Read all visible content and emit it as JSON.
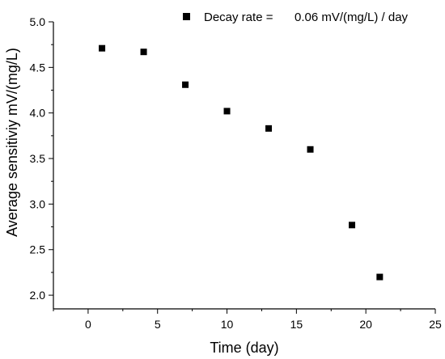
{
  "chart_data": {
    "type": "scatter",
    "title": "",
    "xlabel": "Time (day)",
    "ylabel": "Average sensitiviy mV/(mg/L)",
    "xlim": [
      -2.5,
      25
    ],
    "ylim": [
      1.85,
      5.0
    ],
    "xticks": [
      "0",
      "5",
      "10",
      "15",
      "20",
      "25"
    ],
    "yticks": [
      "2.0",
      "2.5",
      "3.0",
      "3.5",
      "4.0",
      "4.5",
      "5.0"
    ],
    "grid": false,
    "legend_position": "top-right",
    "series": [
      {
        "marker": "square",
        "color": "#000000",
        "x": [
          1,
          4,
          7,
          10,
          13,
          16,
          19,
          21
        ],
        "y": [
          4.71,
          4.67,
          4.31,
          4.02,
          3.83,
          3.6,
          2.77,
          2.2
        ]
      }
    ],
    "annotations": [
      {
        "label": "Decay rate =",
        "value": "0.06 mV/(mg/L) / day"
      }
    ]
  }
}
